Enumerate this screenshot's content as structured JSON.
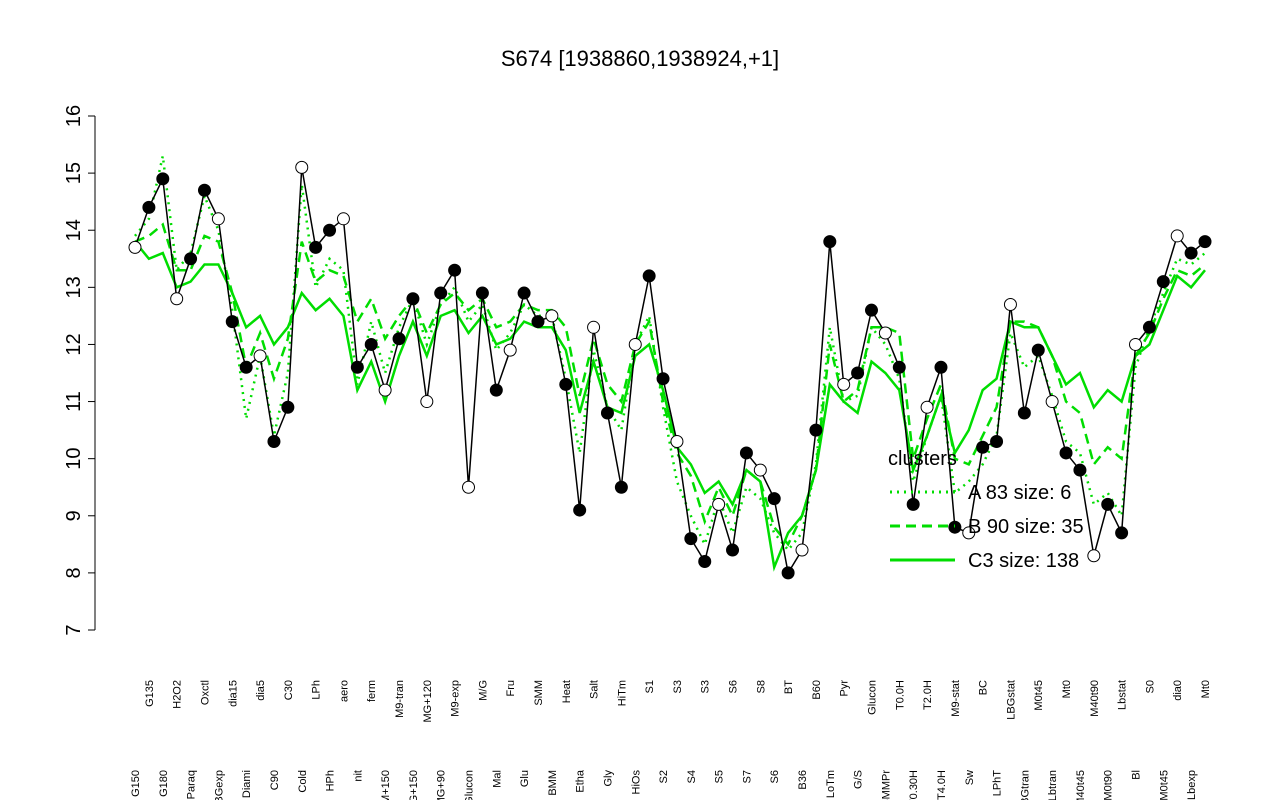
{
  "chart_data": {
    "type": "line",
    "title": "S674 [1938860,1938924,+1]",
    "categories": [
      "G150",
      "G135",
      "G180",
      "H2O2",
      "Paraq",
      "Oxctl",
      "LBGexp",
      "dia15",
      "Diami",
      "dia5",
      "C90",
      "C30",
      "Cold",
      "LPh",
      "HPh",
      "aero",
      "nit",
      "ferm",
      "GM+150",
      "M9-tran",
      "MG+150",
      "MG+120",
      "MG+90",
      "M9-exp",
      "Glucon",
      "M/G",
      "Mal",
      "Fru",
      "Glu",
      "SMM",
      "BMM",
      "Heat",
      "Etha",
      "Salt",
      "Gly",
      "HiTm",
      "HiOs",
      "S1",
      "S2",
      "S3",
      "S4",
      "S3",
      "S5",
      "S6",
      "S7",
      "S8",
      "S6",
      "BT",
      "B36",
      "B60",
      "LoTm",
      "Pyr",
      "G/S",
      "Glucon",
      "SMMPr",
      "T0.0H",
      "T0.30H",
      "T2.0H",
      "T4.0H",
      "M9-stat",
      "Sw",
      "BC",
      "LPhT",
      "LBGstat",
      "LBGtran",
      "M0t45",
      "Lbtran",
      "Mt0",
      "M40t45",
      "M40t90",
      "M0t90",
      "Lbstat",
      "Bl",
      "S0",
      "M0t45",
      "dia0",
      "Lbexp",
      "Mt0"
    ],
    "values": [
      13.7,
      14.4,
      14.9,
      12.8,
      13.5,
      14.7,
      14.2,
      12.4,
      11.6,
      11.8,
      10.3,
      10.9,
      15.1,
      13.7,
      14.0,
      14.2,
      11.6,
      12.0,
      11.2,
      12.1,
      12.8,
      11.0,
      12.9,
      13.3,
      9.5,
      12.9,
      11.2,
      11.9,
      12.9,
      12.4,
      12.5,
      11.3,
      9.1,
      12.3,
      10.8,
      9.5,
      12.0,
      13.2,
      11.4,
      10.3,
      8.6,
      8.2,
      9.2,
      8.4,
      10.1,
      9.8,
      9.3,
      8.0,
      8.4,
      10.5,
      13.8,
      11.3,
      11.5,
      12.6,
      12.2,
      11.6,
      9.2,
      10.9,
      11.6,
      8.8,
      8.7,
      10.2,
      10.3,
      12.7,
      10.8,
      11.9,
      11.0,
      10.1,
      9.8,
      8.3,
      9.2,
      8.7,
      12.0,
      12.3,
      13.1,
      13.9,
      13.6,
      13.8
    ],
    "color": "#000000",
    "clusters": {
      "title": "clusters",
      "series": [
        {
          "name": "A 83 size: 6",
          "style": "dotted",
          "color": "#00dd00",
          "values": [
            13.9,
            14.2,
            15.3,
            13.3,
            13.6,
            14.6,
            14.0,
            12.6,
            10.7,
            11.8,
            10.4,
            11.5,
            14.8,
            13.0,
            13.5,
            13.3,
            11.3,
            12.4,
            11.5,
            12.3,
            12.8,
            12.0,
            12.7,
            13.0,
            12.4,
            12.7,
            11.9,
            12.2,
            12.7,
            12.5,
            12.5,
            11.4,
            10.1,
            11.9,
            10.9,
            10.5,
            12.0,
            12.5,
            10.9,
            9.6,
            9.0,
            8.5,
            9.3,
            8.7,
            9.5,
            9.3,
            8.7,
            8.4,
            8.7,
            9.9,
            12.3,
            11.0,
            11.1,
            12.3,
            12.0,
            11.4,
            9.6,
            10.4,
            11.1,
            9.4,
            9.6,
            9.9,
            10.4,
            12.2,
            11.6,
            11.8,
            11.1,
            10.3,
            10.1,
            9.2,
            9.4,
            9.0,
            11.6,
            12.3,
            12.9,
            13.5,
            13.4,
            13.6
          ]
        },
        {
          "name": "B 90 size: 35",
          "style": "dashed",
          "color": "#00dd00",
          "values": [
            13.8,
            13.9,
            14.1,
            13.3,
            13.3,
            13.9,
            13.8,
            12.9,
            11.6,
            12.2,
            11.4,
            12.1,
            13.8,
            13.1,
            13.3,
            13.2,
            12.4,
            12.8,
            12.1,
            12.5,
            12.8,
            12.2,
            12.7,
            12.9,
            12.6,
            12.8,
            12.3,
            12.4,
            12.7,
            12.6,
            12.6,
            12.3,
            11.1,
            12.1,
            11.3,
            11.0,
            12.0,
            12.4,
            11.0,
            10.1,
            9.7,
            8.9,
            9.5,
            9.0,
            9.8,
            9.6,
            8.8,
            8.5,
            9.0,
            9.8,
            12.0,
            11.0,
            11.2,
            12.3,
            12.3,
            12.2,
            10.0,
            10.7,
            11.3,
            10.0,
            9.9,
            10.4,
            10.9,
            12.4,
            12.4,
            12.3,
            11.8,
            11.0,
            10.8,
            9.9,
            10.2,
            10.0,
            11.8,
            12.2,
            12.8,
            13.3,
            13.2,
            13.4
          ]
        },
        {
          "name": "C3 size: 138",
          "style": "solid",
          "color": "#00dd00",
          "values": [
            13.8,
            13.5,
            13.6,
            13.0,
            13.1,
            13.4,
            13.4,
            12.9,
            12.3,
            12.5,
            12.0,
            12.3,
            12.9,
            12.6,
            12.8,
            12.5,
            11.2,
            11.7,
            11.0,
            11.8,
            12.4,
            11.8,
            12.5,
            12.6,
            12.2,
            12.5,
            12.0,
            12.1,
            12.4,
            12.3,
            12.3,
            11.9,
            10.8,
            11.7,
            10.9,
            10.8,
            11.8,
            12.0,
            11.2,
            10.2,
            9.9,
            9.4,
            9.6,
            9.2,
            9.8,
            9.6,
            8.1,
            8.7,
            9.0,
            9.8,
            11.3,
            11.0,
            10.8,
            11.7,
            11.5,
            11.2,
            9.8,
            10.4,
            11.1,
            10.1,
            10.5,
            11.2,
            11.4,
            12.4,
            12.3,
            12.3,
            11.8,
            11.3,
            11.5,
            10.9,
            11.2,
            11.0,
            11.8,
            12.0,
            12.6,
            13.2,
            13.0,
            13.3
          ]
        }
      ]
    },
    "ylim": [
      7,
      16
    ],
    "yticks": [
      7,
      8,
      9,
      10,
      11,
      12,
      13,
      14,
      15,
      16
    ]
  }
}
